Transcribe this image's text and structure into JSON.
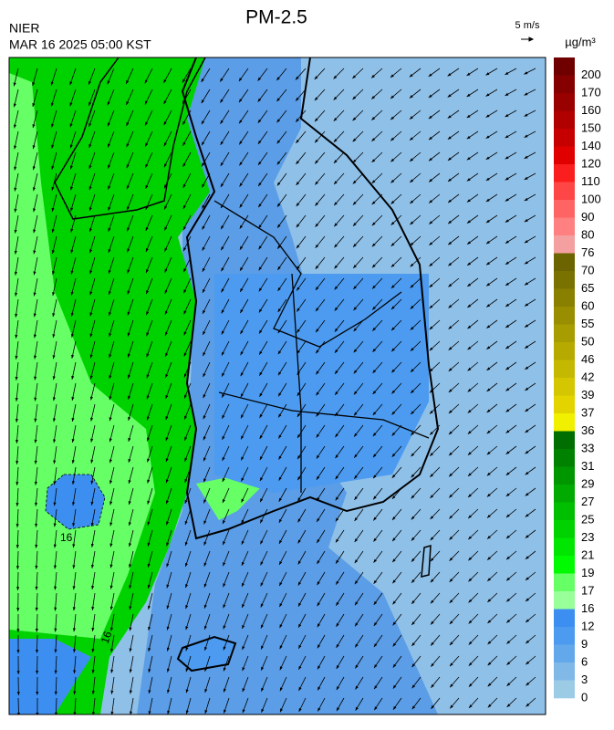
{
  "header": {
    "title": "PM-2.5",
    "agency": "NIER",
    "timestamp": "MAR 16 2025 05:00 KST"
  },
  "wind_scale": {
    "label": "5 m/s"
  },
  "colorbar": {
    "unit": "µg/m³",
    "labels": [
      200,
      170,
      160,
      150,
      140,
      120,
      110,
      100,
      90,
      80,
      76,
      70,
      65,
      60,
      55,
      50,
      46,
      42,
      39,
      37,
      36,
      33,
      31,
      29,
      27,
      25,
      23,
      21,
      19,
      17,
      16,
      12,
      9,
      6,
      3,
      0
    ],
    "colors": [
      "#700000",
      "#850000",
      "#990000",
      "#b00000",
      "#c60000",
      "#e00000",
      "#fa1e1e",
      "#ff4646",
      "#ff6464",
      "#ff8080",
      "#f4a0a0",
      "#6b6400",
      "#7a7200",
      "#898000",
      "#988e00",
      "#a79c00",
      "#b6aa00",
      "#c5b800",
      "#d4c600",
      "#e3d400",
      "#f0f000",
      "#006e00",
      "#008200",
      "#009600",
      "#00aa00",
      "#00be00",
      "#00d200",
      "#00e600",
      "#00fa00",
      "#66ff66",
      "#99ff99",
      "#3c8ff0",
      "#4c9bf0",
      "#64a8ec",
      "#80b8e8",
      "#9ccbe6"
    ]
  },
  "map": {
    "contour_labels": [
      "16",
      "16"
    ]
  }
}
